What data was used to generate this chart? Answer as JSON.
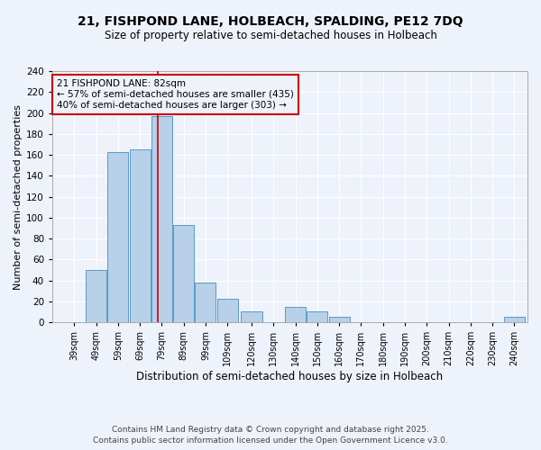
{
  "title1": "21, FISHPOND LANE, HOLBEACH, SPALDING, PE12 7DQ",
  "title2": "Size of property relative to semi-detached houses in Holbeach",
  "xlabel": "Distribution of semi-detached houses by size in Holbeach",
  "ylabel": "Number of semi-detached properties",
  "bins": [
    39,
    49,
    59,
    69,
    79,
    89,
    99,
    109,
    120,
    130,
    140,
    150,
    160,
    170,
    180,
    190,
    200,
    210,
    220,
    230,
    240
  ],
  "counts": [
    0,
    50,
    163,
    165,
    197,
    93,
    38,
    22,
    10,
    0,
    15,
    10,
    5,
    0,
    0,
    0,
    0,
    0,
    0,
    0,
    5
  ],
  "property_size": 82,
  "property_label": "21 FISHPOND LANE: 82sqm",
  "pct_smaller": 57,
  "count_smaller": 435,
  "pct_larger": 40,
  "count_larger": 303,
  "bar_color": "#b8d0e8",
  "bar_edge_color": "#5a9ac8",
  "line_color": "#cc0000",
  "box_edge_color": "#cc0000",
  "background_color": "#eef2fa",
  "grid_color": "#ffffff",
  "ylim": [
    0,
    240
  ],
  "yticks": [
    0,
    20,
    40,
    60,
    80,
    100,
    120,
    140,
    160,
    180,
    200,
    220,
    240
  ],
  "footnote1": "Contains HM Land Registry data © Crown copyright and database right 2025.",
  "footnote2": "Contains public sector information licensed under the Open Government Licence v3.0."
}
